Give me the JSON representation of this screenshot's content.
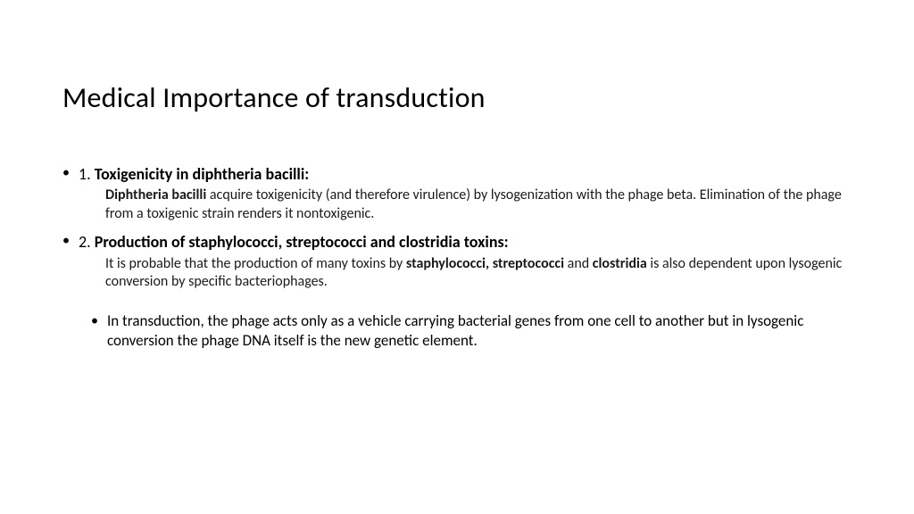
{
  "title": "Medical Importance of transduction",
  "points": [
    {
      "num": "1.",
      "heading": "Toxigenicity in diphtheria bacilli:",
      "body_parts": [
        {
          "t": "Diphtheria bacilli",
          "b": true
        },
        {
          "t": " acquire toxigenicity (and therefore virulence) by lysogenization with the phage beta. Elimination of the phage from a toxigenic strain renders it nontoxigenic.",
          "b": false
        }
      ]
    },
    {
      "num": "2.",
      "heading": "Production of staphylococci, streptococci and clostridia toxins:",
      "body_parts": [
        {
          "t": "It is probable that the production of many toxins by ",
          "b": false
        },
        {
          "t": "staphylococci, streptococci",
          "b": true
        },
        {
          "t": " and ",
          "b": false
        },
        {
          "t": "clostridia",
          "b": true
        },
        {
          "t": " is also dependent upon lysogenic conversion by specific bacteriophages.",
          "b": false
        }
      ]
    }
  ],
  "sub_bullet": "In transduction, the phage acts only as a vehicle carrying bacterial genes from one cell to another but in lysogenic conversion the phage DNA itself is the new genetic element.",
  "style": {
    "background_color": "#ffffff",
    "text_color": "#1a1a1a",
    "title_fontsize": 32,
    "heading_fontsize": 18,
    "body_fontsize": 16,
    "sub_bullet_fontsize": 17,
    "font_family": "Calibri"
  }
}
